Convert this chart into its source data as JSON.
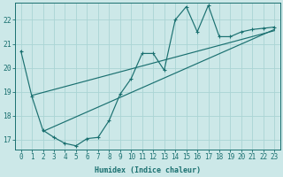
{
  "xlabel": "Humidex (Indice chaleur)",
  "bg_color": "#cce8e8",
  "line_color": "#1a7070",
  "grid_color": "#aad4d4",
  "xlim": [
    -0.5,
    23.5
  ],
  "ylim": [
    16.6,
    22.7
  ],
  "xticks": [
    0,
    1,
    2,
    3,
    4,
    5,
    6,
    7,
    8,
    9,
    10,
    11,
    12,
    13,
    14,
    15,
    16,
    17,
    18,
    19,
    20,
    21,
    22,
    23
  ],
  "yticks": [
    17,
    18,
    19,
    20,
    21,
    22
  ],
  "main_x": [
    0,
    1,
    2,
    3,
    4,
    5,
    6,
    7,
    8,
    9,
    10,
    11,
    12,
    13,
    14,
    15,
    16,
    17,
    18,
    19,
    20,
    21,
    22,
    23
  ],
  "main_y": [
    20.7,
    18.8,
    17.4,
    17.1,
    16.85,
    16.75,
    17.05,
    17.1,
    17.8,
    18.9,
    19.55,
    20.6,
    20.6,
    19.9,
    22.0,
    22.55,
    21.5,
    22.6,
    21.3,
    21.3,
    21.5,
    21.6,
    21.65,
    21.7
  ],
  "line2_x": [
    1,
    23
  ],
  "line2_y": [
    18.85,
    21.55
  ],
  "line3_x": [
    2,
    23
  ],
  "line3_y": [
    17.35,
    21.6
  ],
  "xlabel_fontsize": 6.0,
  "tick_fontsize": 5.5
}
